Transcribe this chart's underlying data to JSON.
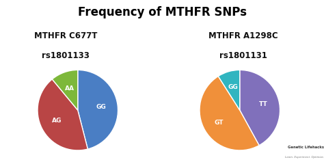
{
  "title": "Frequency of MTHFR SNPs",
  "title_bg": "#c5e065",
  "title_color": "#000000",
  "bg_color": "#ffffff",
  "pie1_title_line1": "MTHFR C677T",
  "pie1_title_line2": "rs1801133",
  "pie1_labels": [
    "GG",
    "AG",
    "AA"
  ],
  "pie1_values": [
    46,
    43,
    11
  ],
  "pie1_colors": [
    "#4a7ec4",
    "#b94545",
    "#7db83a"
  ],
  "pie1_startangle": 90,
  "pie2_title_line1": "MTHFR A1298C",
  "pie2_title_line2": "rs1801131",
  "pie2_labels": [
    "TT",
    "GT",
    "GG"
  ],
  "pie2_values": [
    42,
    49,
    9
  ],
  "pie2_colors": [
    "#8070bb",
    "#f0903a",
    "#30b5c0"
  ],
  "pie2_startangle": 90,
  "label_fontsize": 6.5,
  "label_color": "#ffffff",
  "subtitle_fontsize": 8.5,
  "subtitle_color": "#111111",
  "watermark": "Genetic Lifehacks",
  "watermark2": "Learn. Experiment. Optimize.",
  "figsize": [
    4.74,
    2.37
  ],
  "dpi": 100
}
